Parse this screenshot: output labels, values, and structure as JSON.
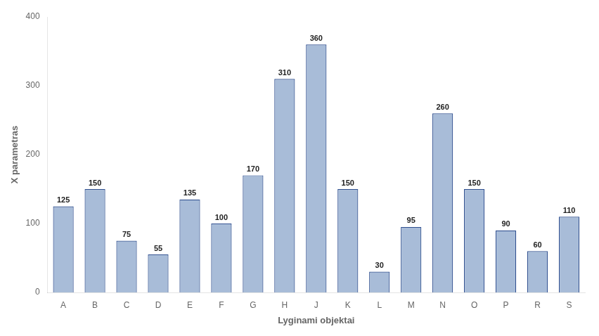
{
  "chart_data": {
    "type": "bar",
    "categories": [
      "A",
      "B",
      "C",
      "D",
      "E",
      "F",
      "G",
      "H",
      "J",
      "K",
      "L",
      "M",
      "N",
      "O",
      "P",
      "R",
      "S"
    ],
    "values": [
      125,
      150,
      75,
      55,
      135,
      100,
      170,
      310,
      360,
      150,
      30,
      95,
      260,
      150,
      90,
      60,
      110
    ],
    "color": "#a8bcd8",
    "xlabel": "Lyginami objektai",
    "ylabel": "X parametras",
    "ylim": [
      0,
      400
    ],
    "yticks": [
      0,
      100,
      200,
      300,
      400
    ],
    "grid": false,
    "data_labels": true
  }
}
